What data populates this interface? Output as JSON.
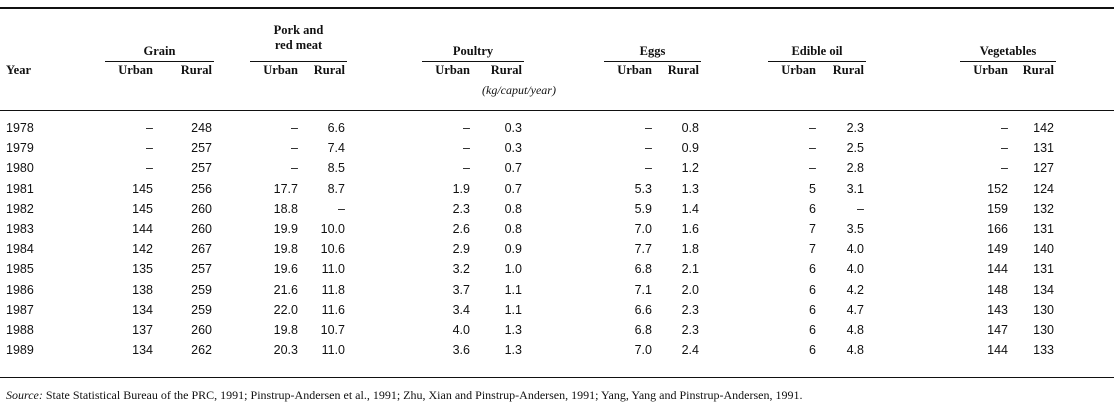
{
  "header": {
    "year": "Year",
    "groups": [
      "Grain",
      "Pork and red meat",
      "Poultry",
      "Eggs",
      "Edible oil",
      "Vegetables"
    ],
    "sub": [
      "Urban",
      "Rural"
    ],
    "unit": "(kg/caput/year)"
  },
  "rows": [
    [
      "1978",
      "–",
      "248",
      "–",
      "6.6",
      "–",
      "0.3",
      "–",
      "0.8",
      "–",
      "2.3",
      "–",
      "142"
    ],
    [
      "1979",
      "–",
      "257",
      "–",
      "7.4",
      "–",
      "0.3",
      "–",
      "0.9",
      "–",
      "2.5",
      "–",
      "131"
    ],
    [
      "1980",
      "–",
      "257",
      "–",
      "8.5",
      "–",
      "0.7",
      "–",
      "1.2",
      "–",
      "2.8",
      "–",
      "127"
    ],
    [
      "1981",
      "145",
      "256",
      "17.7",
      "8.7",
      "1.9",
      "0.7",
      "5.3",
      "1.3",
      "5",
      "3.1",
      "152",
      "124"
    ],
    [
      "1982",
      "145",
      "260",
      "18.8",
      "–",
      "2.3",
      "0.8",
      "5.9",
      "1.4",
      "6",
      "–",
      "159",
      "132"
    ],
    [
      "1983",
      "144",
      "260",
      "19.9",
      "10.0",
      "2.6",
      "0.8",
      "7.0",
      "1.6",
      "7",
      "3.5",
      "166",
      "131"
    ],
    [
      "1984",
      "142",
      "267",
      "19.8",
      "10.6",
      "2.9",
      "0.9",
      "7.7",
      "1.8",
      "7",
      "4.0",
      "149",
      "140"
    ],
    [
      "1985",
      "135",
      "257",
      "19.6",
      "11.0",
      "3.2",
      "1.0",
      "6.8",
      "2.1",
      "6",
      "4.0",
      "144",
      "131"
    ],
    [
      "1986",
      "138",
      "259",
      "21.6",
      "11.8",
      "3.7",
      "1.1",
      "7.1",
      "2.0",
      "6",
      "4.2",
      "148",
      "134"
    ],
    [
      "1987",
      "134",
      "259",
      "22.0",
      "11.6",
      "3.4",
      "1.1",
      "6.6",
      "2.3",
      "6",
      "4.7",
      "143",
      "130"
    ],
    [
      "1988",
      "137",
      "260",
      "19.8",
      "10.7",
      "4.0",
      "1.3",
      "6.8",
      "2.3",
      "6",
      "4.8",
      "147",
      "130"
    ],
    [
      "1989",
      "134",
      "262",
      "20.3",
      "11.0",
      "3.6",
      "1.3",
      "7.0",
      "2.4",
      "6",
      "4.8",
      "144",
      "133"
    ]
  ],
  "source": {
    "label": "Source:",
    "text": " State Statistical Bureau of the PRC, 1991; Pinstrup-Andersen et al., 1991; Zhu, Xian and Pinstrup-Andersen, 1991; Yang, Yang and Pinstrup-Andersen, 1991."
  }
}
